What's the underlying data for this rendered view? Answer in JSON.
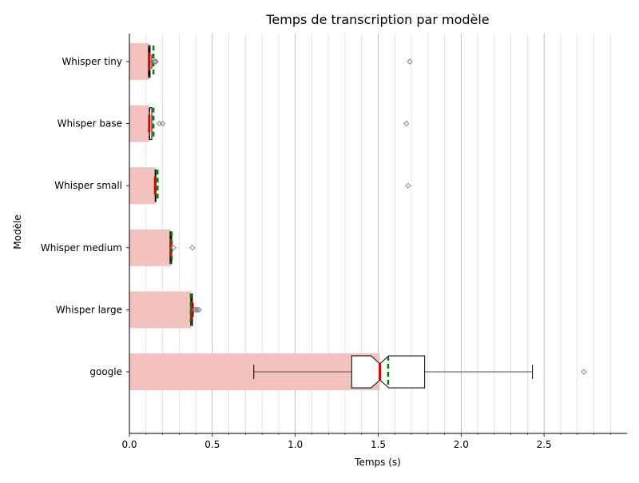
{
  "chart_data": {
    "type": "boxplot-horizontal",
    "title": "Temps de transcription par modèle",
    "xlabel": "Temps (s)",
    "ylabel": "Modèle",
    "xlim": [
      0,
      3.0
    ],
    "x_ticks": [
      0.0,
      0.5,
      1.0,
      1.5,
      2.0,
      2.5
    ],
    "x_tick_labels": [
      "0.0",
      "0.5",
      "1.0",
      "1.5",
      "2.0",
      "2.5"
    ],
    "x_minor_step": 0.1,
    "grid": "vertical major and minor",
    "categories": [
      "Whisper tiny",
      "Whisper base",
      "Whisper small",
      "Whisper medium",
      "Whisper large",
      "google"
    ],
    "mean_bars": [
      0.12,
      0.12,
      0.16,
      0.25,
      0.37,
      1.51
    ],
    "boxes": [
      {
        "whisker_low": 0.115,
        "q1": 0.115,
        "median": 0.12,
        "q3": 0.125,
        "whisker_high": 0.135,
        "mean": 0.145,
        "outliers": [
          0.15,
          0.155,
          0.16,
          1.69
        ]
      },
      {
        "whisker_low": 0.12,
        "q1": 0.12,
        "median": 0.12,
        "q3": 0.135,
        "whisker_high": 0.135,
        "mean": 0.145,
        "outliers": [
          0.18,
          0.2,
          1.67
        ]
      },
      {
        "whisker_low": 0.155,
        "q1": 0.155,
        "median": 0.155,
        "q3": 0.16,
        "whisker_high": 0.16,
        "mean": 0.17,
        "outliers": [
          1.68
        ]
      },
      {
        "whisker_low": 0.245,
        "q1": 0.245,
        "median": 0.25,
        "q3": 0.255,
        "whisker_high": 0.255,
        "mean": 0.255,
        "outliers": [
          0.265,
          0.38
        ]
      },
      {
        "whisker_low": 0.37,
        "q1": 0.37,
        "median": 0.375,
        "q3": 0.38,
        "whisker_high": 0.385,
        "mean": 0.37,
        "outliers": [
          0.39,
          0.4,
          0.41,
          0.42
        ]
      },
      {
        "whisker_low": 0.75,
        "q1": 1.34,
        "median": 1.51,
        "q3": 1.78,
        "whisker_high": 2.43,
        "mean": 1.56,
        "outliers": [
          2.74
        ]
      }
    ],
    "colors": {
      "mean_bar": "#f4c2be",
      "median": "#e00000",
      "mean_line": "#008000",
      "box": "#000000",
      "outlier": "#888888",
      "grid": "#dcdcdc",
      "grid_major": "#b0b0b0"
    }
  }
}
